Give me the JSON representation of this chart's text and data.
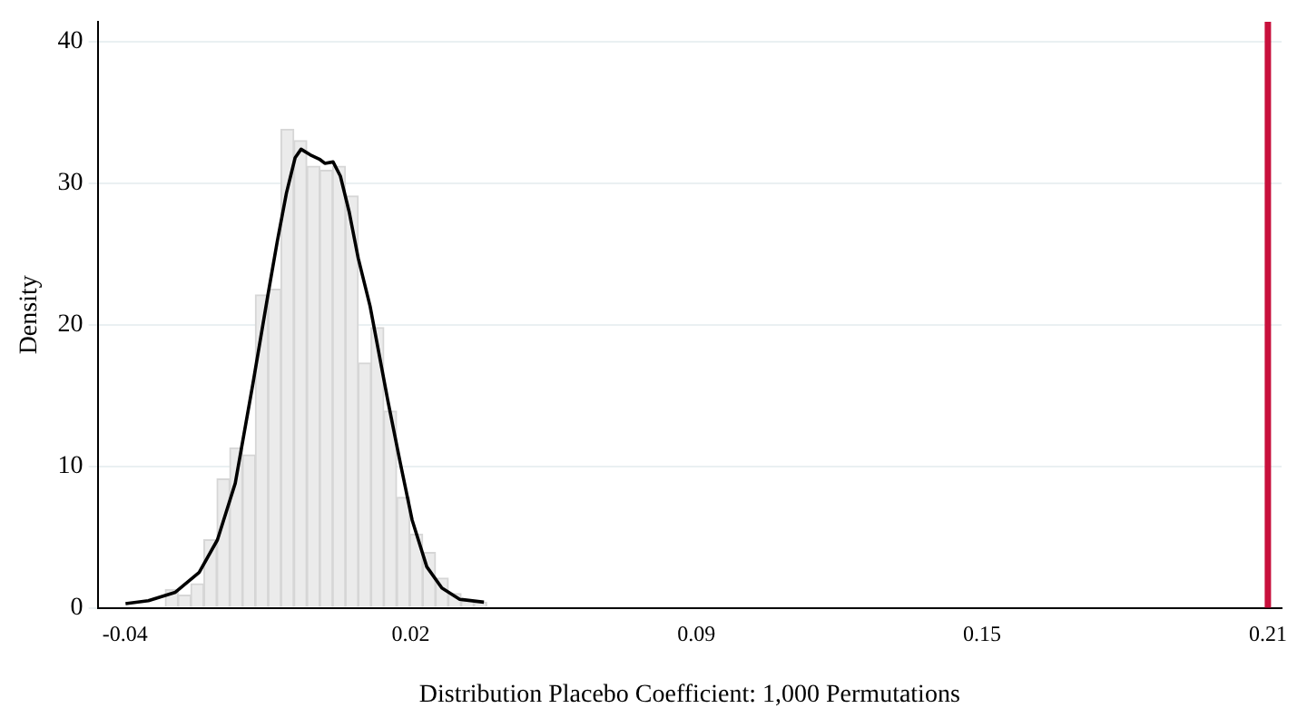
{
  "chart_data": {
    "type": "histogram",
    "xlabel": "Distribution Placebo Coefficient: 1,000 Permutations",
    "ylabel": "Density",
    "xlim": [
      -0.046,
      0.213
    ],
    "xticks": [
      -0.04,
      {
        "value": 0.0225,
        "label": "0.02"
      },
      {
        "value": 0.085,
        "label": "0.09"
      },
      {
        "value": 0.1475,
        "label": "0.15"
      },
      0.21
    ],
    "ylim": [
      0,
      41.4
    ],
    "yticks": [
      0,
      10,
      20,
      30,
      40
    ],
    "grid": "y",
    "legend": false,
    "series": [
      {
        "color": "#ebebeb",
        "bins": [
          -0.0312,
          -0.0284,
          -0.0256,
          -0.0228,
          -0.0199,
          -0.0171,
          -0.0143,
          -0.0115,
          -0.0087,
          -0.0059,
          -0.0031,
          -0.0002,
          0.0026,
          0.0054,
          0.0082,
          0.011,
          0.0138,
          0.0166,
          0.0194,
          0.0223,
          0.0251,
          0.0279,
          0.0307,
          0.0335,
          0.0363,
          0.0391
        ],
        "values": [
          1.3,
          0.9,
          1.7,
          4.8,
          9.1,
          11.3,
          10.8,
          22.1,
          22.5,
          33.8,
          33.0,
          31.2,
          30.9,
          31.2,
          29.1,
          17.3,
          19.8,
          13.9,
          7.8,
          5.2,
          3.9,
          2.1,
          1.0,
          0.5,
          0.4
        ]
      },
      {
        "type": "line",
        "color": "#000000",
        "x": [
          -0.0399,
          -0.0349,
          -0.029,
          -0.0238,
          -0.0198,
          -0.0159,
          -0.012,
          -0.0087,
          -0.0067,
          -0.0047,
          -0.0028,
          -0.0015,
          0.0005,
          0.0025,
          0.0037,
          0.0055,
          0.0071,
          0.009,
          0.011,
          0.0136,
          0.0175,
          0.0201,
          0.0228,
          0.026,
          0.0293,
          0.0332,
          0.0385
        ],
        "values": [
          0.3,
          0.5,
          1.1,
          2.5,
          4.8,
          8.8,
          15.9,
          22.2,
          25.9,
          29.3,
          31.8,
          32.4,
          32.0,
          31.7,
          31.4,
          31.5,
          30.5,
          28.0,
          24.7,
          21.3,
          14.6,
          10.4,
          6.2,
          2.9,
          1.4,
          0.6,
          0.4
        ]
      }
    ],
    "ref_lines": [
      {
        "axis": "x",
        "value": 0.21,
        "color": "#c8103c"
      }
    ]
  }
}
